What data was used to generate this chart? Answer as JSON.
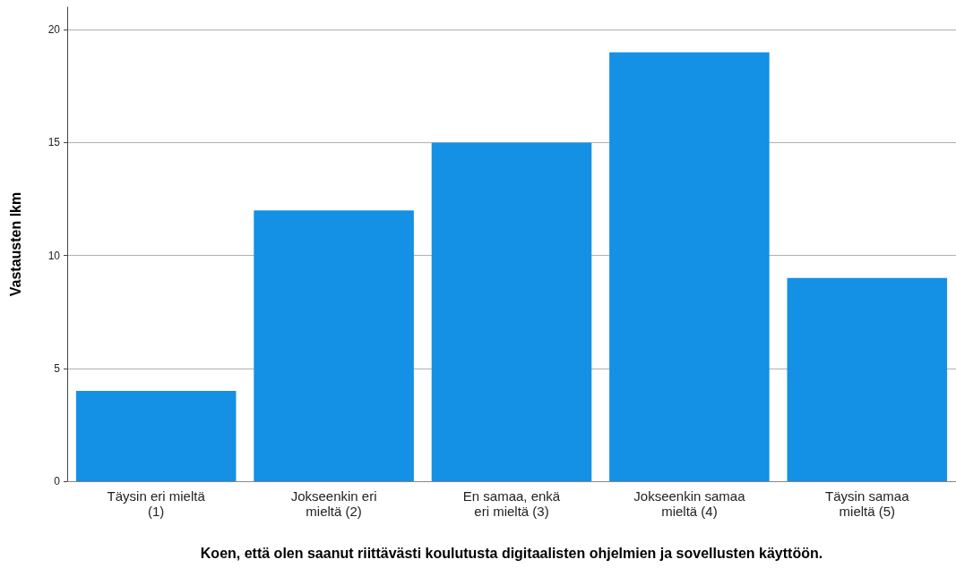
{
  "chart_data": {
    "type": "bar",
    "xlabel": "Koen, että olen saanut riittävästi koulutusta digitaalisten ohjelmien ja sovellusten käyttöön.",
    "ylabel": "Vastausten lkm",
    "categories": [
      "Täysin eri mieltä\n(1)",
      "Jokseenkin eri\nmieltä (2)",
      "En samaa, enkä\neri mieltä (3)",
      "Jokseenkin samaa\nmieltä (4)",
      "Täysin samaa\nmieltä (5)"
    ],
    "values": [
      4,
      12,
      15,
      19,
      9
    ],
    "color": "#1490e5",
    "ylim": [
      0,
      21
    ],
    "yticks": [
      0,
      5,
      10,
      15,
      20
    ],
    "grid": "y"
  }
}
